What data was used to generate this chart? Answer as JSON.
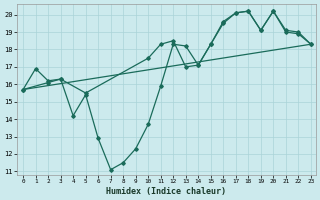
{
  "xlabel": "Humidex (Indice chaleur)",
  "bg_color": "#cceaed",
  "line_color": "#1a6b5a",
  "grid_color": "#aad4d8",
  "xlim_min": -0.5,
  "xlim_max": 23.4,
  "ylim_min": 10.8,
  "ylim_max": 20.6,
  "yticks": [
    11,
    12,
    13,
    14,
    15,
    16,
    17,
    18,
    19,
    20
  ],
  "xticks": [
    0,
    1,
    2,
    3,
    4,
    5,
    6,
    7,
    8,
    9,
    10,
    11,
    12,
    13,
    14,
    15,
    16,
    17,
    18,
    19,
    20,
    21,
    22,
    23
  ],
  "line1_x": [
    0,
    1,
    2,
    3,
    4,
    5,
    6,
    7,
    8,
    9,
    10,
    11,
    12,
    13,
    14,
    15,
    16,
    17,
    18,
    19,
    20,
    21,
    22,
    23
  ],
  "line1_y": [
    15.7,
    16.9,
    16.2,
    16.3,
    14.2,
    15.4,
    12.9,
    11.1,
    11.5,
    12.3,
    13.7,
    15.9,
    18.3,
    18.2,
    17.1,
    18.3,
    19.6,
    20.1,
    20.2,
    19.1,
    20.2,
    19.0,
    18.9,
    18.3
  ],
  "line2_x": [
    0,
    2,
    3,
    5,
    10,
    11,
    12,
    13,
    14,
    15,
    16,
    17,
    18,
    19,
    20,
    21,
    22,
    23
  ],
  "line2_y": [
    15.7,
    16.1,
    16.3,
    15.5,
    17.5,
    18.3,
    18.5,
    17.0,
    17.1,
    18.3,
    19.5,
    20.1,
    20.2,
    19.1,
    20.2,
    19.1,
    19.0,
    18.3
  ],
  "line3_x": [
    0,
    23
  ],
  "line3_y": [
    15.7,
    18.3
  ]
}
